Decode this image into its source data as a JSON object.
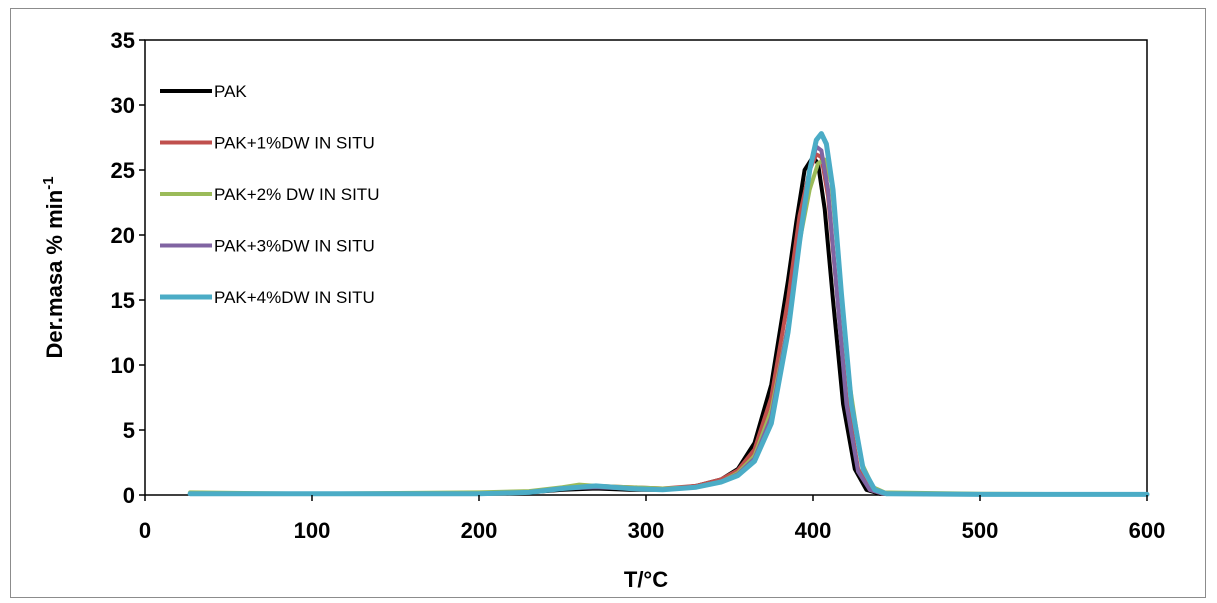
{
  "chart_data": {
    "type": "line",
    "title": "",
    "xlabel": "T/°C",
    "ylabel": "Der.masa % min",
    "ylabel_sup": "-1",
    "xlim": [
      0,
      600
    ],
    "ylim": [
      0,
      35
    ],
    "xticks": [
      0,
      100,
      200,
      300,
      400,
      500,
      600
    ],
    "yticks": [
      0,
      5,
      10,
      15,
      20,
      25,
      30,
      35
    ],
    "grid": false,
    "legend_position": "top-left",
    "series": [
      {
        "name": "PAK",
        "color": "#000000",
        "x": [
          27,
          100,
          200,
          230,
          250,
          270,
          290,
          310,
          330,
          345,
          355,
          365,
          375,
          385,
          390,
          395,
          400,
          403,
          407,
          412,
          418,
          425,
          432,
          440,
          500,
          600
        ],
        "y": [
          0.1,
          0.1,
          0.1,
          0.2,
          0.4,
          0.5,
          0.4,
          0.4,
          0.7,
          1.2,
          2.0,
          4.0,
          8.5,
          16.5,
          21.0,
          25.0,
          26.0,
          25.5,
          22.0,
          15.0,
          7.0,
          2.0,
          0.4,
          0.1,
          0.05,
          0.05
        ]
      },
      {
        "name": "PAK+1%DW IN SITU",
        "color": "#c0504d",
        "x": [
          27,
          100,
          200,
          230,
          250,
          270,
          290,
          310,
          330,
          345,
          355,
          365,
          375,
          385,
          392,
          398,
          402,
          405,
          409,
          414,
          420,
          427,
          434,
          442,
          500,
          600
        ],
        "y": [
          0.1,
          0.1,
          0.1,
          0.2,
          0.5,
          0.7,
          0.6,
          0.5,
          0.7,
          1.2,
          1.9,
          3.5,
          7.5,
          15.0,
          21.5,
          25.0,
          26.2,
          26.0,
          23.0,
          16.0,
          7.5,
          2.0,
          0.4,
          0.1,
          0.05,
          0.05
        ]
      },
      {
        "name": "PAK+2% DW IN SITU",
        "color": "#9bbb59",
        "x": [
          27,
          100,
          200,
          230,
          250,
          260,
          270,
          290,
          310,
          330,
          345,
          355,
          365,
          375,
          385,
          392,
          398,
          403,
          407,
          411,
          416,
          422,
          429,
          436,
          443,
          500,
          600
        ],
        "y": [
          0.2,
          0.1,
          0.2,
          0.3,
          0.6,
          0.8,
          0.7,
          0.6,
          0.5,
          0.6,
          1.0,
          1.7,
          3.0,
          6.5,
          13.0,
          19.5,
          23.5,
          25.5,
          25.8,
          24.0,
          17.0,
          8.5,
          2.5,
          0.6,
          0.2,
          0.1,
          0.05
        ]
      },
      {
        "name": "PAK+3%DW IN SITU",
        "color": "#8064a2",
        "x": [
          27,
          100,
          200,
          230,
          250,
          270,
          290,
          310,
          330,
          345,
          355,
          365,
          375,
          385,
          392,
          398,
          402,
          405,
          409,
          414,
          420,
          427,
          434,
          442,
          500,
          600
        ],
        "y": [
          0.1,
          0.1,
          0.1,
          0.2,
          0.5,
          0.6,
          0.5,
          0.4,
          0.6,
          1.0,
          1.6,
          2.8,
          6.0,
          13.0,
          20.0,
          25.0,
          26.8,
          26.5,
          23.5,
          16.0,
          7.0,
          1.8,
          0.4,
          0.1,
          0.05,
          0.05
        ]
      },
      {
        "name": "PAK+4%DW IN SITU",
        "color": "#4bacc6",
        "x": [
          27,
          100,
          200,
          230,
          250,
          270,
          290,
          310,
          330,
          345,
          355,
          365,
          375,
          385,
          392,
          398,
          402,
          405,
          408,
          412,
          417,
          423,
          430,
          437,
          444,
          500,
          600
        ],
        "y": [
          0.1,
          0.1,
          0.1,
          0.2,
          0.5,
          0.7,
          0.5,
          0.4,
          0.6,
          1.0,
          1.5,
          2.6,
          5.5,
          12.5,
          19.5,
          25.0,
          27.3,
          27.8,
          27.0,
          23.5,
          15.5,
          7.0,
          2.0,
          0.4,
          0.1,
          0.05,
          0.05
        ]
      }
    ]
  }
}
